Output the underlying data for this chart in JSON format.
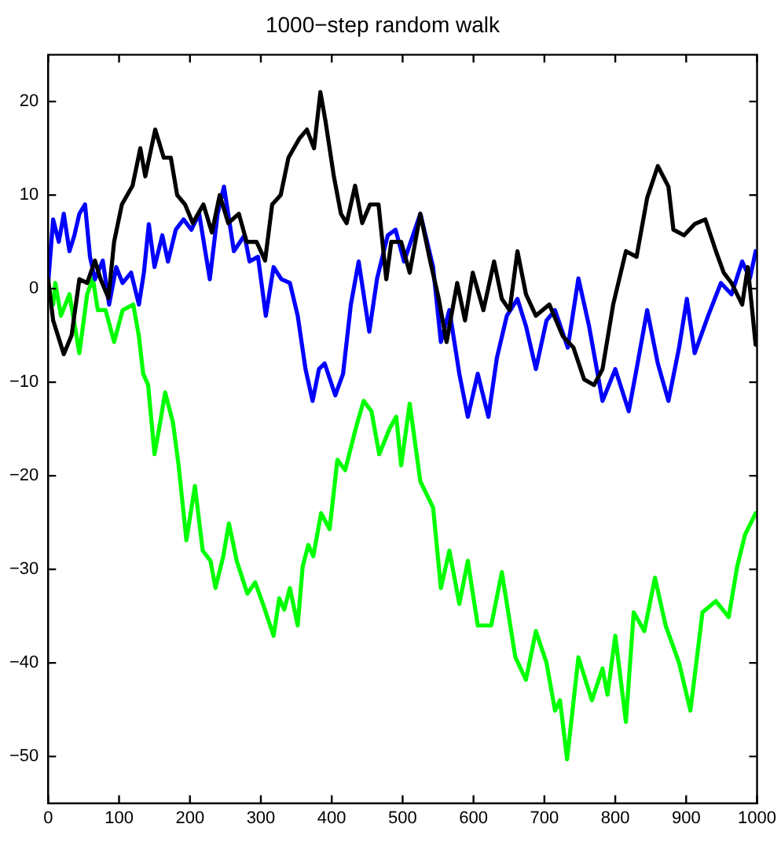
{
  "chart_data": {
    "type": "line",
    "title": "1000−step random walk",
    "xlim": [
      0,
      1000
    ],
    "xticks": [
      0,
      100,
      200,
      300,
      400,
      500,
      600,
      700,
      800,
      900,
      1000
    ],
    "ylim": [
      -55,
      25
    ],
    "yticks": [
      -50,
      -40,
      -30,
      -20,
      -10,
      0,
      10,
      20
    ],
    "grid": false,
    "legend": false,
    "marker": "none",
    "line_style": "solid",
    "series": [
      {
        "color": "#000000",
        "x": [
          0,
          7,
          22,
          33,
          44,
          55,
          66,
          74,
          85,
          93,
          104,
          119,
          130,
          137,
          151,
          163,
          173,
          182,
          193,
          204,
          219,
          231,
          242,
          254,
          269,
          280,
          294,
          306,
          316,
          328,
          339,
          354,
          365,
          375,
          384,
          391,
          403,
          413,
          421,
          433,
          443,
          454,
          466,
          477,
          484,
          498,
          510,
          525,
          539,
          551,
          562,
          577,
          588,
          599,
          614,
          629,
          640,
          651,
          662,
          674,
          688,
          707,
          726,
          741,
          756,
          770,
          782,
          797,
          815,
          830,
          845,
          860,
          875,
          882,
          897,
          912,
          927,
          942,
          953,
          964,
          979,
          987,
          998
        ],
        "values": [
          1,
          -3.4,
          -7,
          -5,
          1,
          0.6,
          3,
          1,
          -1,
          5,
          9,
          11,
          15,
          12,
          17,
          14,
          14,
          10,
          9,
          7,
          9,
          6,
          10,
          7,
          8,
          5,
          5,
          3,
          9,
          10,
          14,
          16,
          17,
          15,
          21,
          18,
          12,
          8,
          7,
          11,
          7,
          9,
          9,
          1,
          5,
          5,
          1.7,
          8,
          2.9,
          -1.1,
          -5.7,
          0.6,
          -3.4,
          1.7,
          -2.3,
          2.9,
          -1.1,
          -2.3,
          4,
          -0.6,
          -2.9,
          -1.7,
          -5.1,
          -6.3,
          -9.7,
          -10.3,
          -8.6,
          -1.7,
          4,
          3.4,
          9.7,
          13.1,
          10.9,
          6.3,
          5.7,
          6.9,
          7.4,
          4,
          1.7,
          0.6,
          -1.7,
          2.3,
          -6
        ]
      },
      {
        "color": "#0000ff",
        "x": [
          0,
          7,
          15,
          22,
          30,
          37,
          44,
          52,
          59,
          66,
          77,
          86,
          96,
          105,
          117,
          128,
          135,
          142,
          150,
          161,
          169,
          180,
          191,
          202,
          213,
          228,
          239,
          248,
          262,
          277,
          284,
          296,
          307,
          318,
          329,
          341,
          352,
          363,
          373,
          382,
          390,
          405,
          416,
          427,
          438,
          453,
          464,
          479,
          490,
          502,
          525,
          543,
          554,
          566,
          580,
          592,
          606,
          621,
          633,
          647,
          662,
          674,
          688,
          703,
          715,
          733,
          748,
          763,
          782,
          800,
          819,
          830,
          845,
          860,
          875,
          890,
          901,
          912,
          931,
          949,
          964,
          979,
          990,
          998
        ],
        "values": [
          0.6,
          7.4,
          5,
          8,
          4,
          5.7,
          8,
          9,
          3.4,
          1,
          3,
          -1.7,
          2.3,
          0.6,
          1.7,
          -1.7,
          1.7,
          6.9,
          2.3,
          5.7,
          2.9,
          6.3,
          7.4,
          6.3,
          8,
          1,
          8,
          10.9,
          4,
          5.7,
          2.9,
          3.4,
          -2.9,
          2.3,
          1,
          0.6,
          -2.9,
          -8.6,
          -12,
          -8.6,
          -8,
          -11.4,
          -9.1,
          -1.7,
          2.9,
          -4.6,
          1.1,
          5.7,
          6.3,
          2.9,
          8,
          2.3,
          -5.7,
          -2.3,
          -9.1,
          -13.7,
          -9.1,
          -13.7,
          -7.4,
          -2.9,
          -1.1,
          -4,
          -8.6,
          -3.4,
          -2.3,
          -6.3,
          1.1,
          -4,
          -12,
          -8.6,
          -13.1,
          -8.6,
          -2.3,
          -8,
          -12,
          -6.3,
          -1.1,
          -6.9,
          -2.9,
          0.6,
          -0.6,
          2.9,
          1.1,
          4
        ]
      },
      {
        "color": "#00ff00",
        "x": [
          0,
          7,
          10,
          18,
          30,
          44,
          55,
          63,
          70,
          81,
          93,
          105,
          120,
          128,
          134,
          141,
          150,
          158,
          165,
          176,
          184,
          195,
          207,
          218,
          229,
          236,
          247,
          255,
          266,
          281,
          292,
          303,
          318,
          326,
          333,
          341,
          352,
          359,
          367,
          374,
          385,
          397,
          408,
          419,
          434,
          445,
          456,
          467,
          482,
          491,
          498,
          510,
          525,
          543,
          554,
          566,
          580,
          592,
          606,
          625,
          640,
          659,
          674,
          688,
          703,
          715,
          722,
          732,
          748,
          767,
          782,
          789,
          800,
          815,
          826,
          841,
          856,
          871,
          890,
          906,
          923,
          942,
          960,
          972,
          983,
          998
        ],
        "values": [
          0,
          -1.7,
          0.6,
          -2.9,
          -0.6,
          -6.9,
          -0.6,
          1.1,
          -2.3,
          -2.3,
          -5.7,
          -2.3,
          -1.7,
          -5.1,
          -9.1,
          -10.3,
          -17.7,
          -14.3,
          -11.1,
          -14.3,
          -18.9,
          -26.9,
          -21.1,
          -28,
          -29.1,
          -32,
          -28.6,
          -25.1,
          -29.1,
          -32.6,
          -31.4,
          -33.7,
          -37.1,
          -33.1,
          -34.3,
          -32,
          -36,
          -29.7,
          -27.4,
          -28.6,
          -24,
          -25.7,
          -18.3,
          -19.4,
          -14.9,
          -12,
          -13.1,
          -17.7,
          -14.9,
          -13.7,
          -18.9,
          -12.3,
          -20.6,
          -23.4,
          -32,
          -28,
          -33.7,
          -29.1,
          -36,
          -36,
          -30.3,
          -39.4,
          -41.8,
          -36.6,
          -40,
          -45.1,
          -44,
          -50.3,
          -39.4,
          -44,
          -40.6,
          -43.4,
          -37.1,
          -46.3,
          -34.6,
          -36.6,
          -30.9,
          -36,
          -40,
          -45.1,
          -34.6,
          -33.4,
          -35.1,
          -29.7,
          -26.3,
          -24
        ]
      }
    ]
  }
}
